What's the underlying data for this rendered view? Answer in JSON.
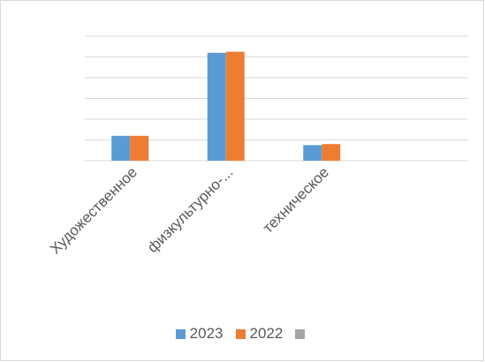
{
  "chart_data": {
    "type": "bar",
    "categories": [
      "Художественное",
      "физкультурно-...",
      "техническое",
      ""
    ],
    "series": [
      {
        "name": "2023",
        "color": "#5B9BD5",
        "values": [
          12,
          52,
          7.5,
          null
        ]
      },
      {
        "name": "2022",
        "color": "#ED7D31",
        "values": [
          12,
          52.5,
          8,
          null
        ]
      },
      {
        "name": "",
        "color": "#A5A5A5",
        "values": [
          null,
          null,
          null,
          null
        ]
      }
    ],
    "ylim": [
      0,
      60
    ],
    "grid": true,
    "legend_position": "bottom"
  }
}
